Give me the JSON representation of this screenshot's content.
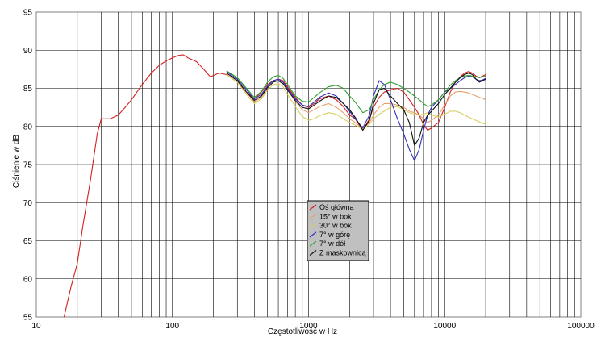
{
  "chart_data": {
    "type": "line",
    "xlabel": "Częstotliwość w Hz",
    "ylabel": "Ciśnienie w dB",
    "x_scale": "log",
    "xlim": [
      10,
      100000
    ],
    "ylim": [
      55,
      95
    ],
    "x_ticks": [
      "10",
      "100",
      "1000",
      "10000",
      "100000"
    ],
    "y_ticks": [
      "55",
      "60",
      "65",
      "70",
      "75",
      "80",
      "85",
      "90",
      "95"
    ],
    "grid": true,
    "legend_position": "center",
    "series": [
      {
        "name": "Oś główna",
        "color": "#d42020",
        "x": [
          16,
          18,
          20,
          22,
          25,
          28,
          30,
          32,
          35,
          40,
          45,
          50,
          60,
          70,
          80,
          90,
          100,
          110,
          120,
          130,
          150,
          170,
          190,
          220,
          250,
          300,
          350,
          400,
          450,
          500,
          550,
          600,
          650,
          700,
          800,
          900,
          1000,
          1100,
          1200,
          1400,
          1600,
          1800,
          2000,
          2200,
          2500,
          2800,
          3000,
          3300,
          3600,
          4000,
          4500,
          5000,
          5500,
          6000,
          6500,
          7000,
          7500,
          8000,
          9000,
          10000,
          11000,
          12000,
          13000,
          14000,
          15000,
          16000,
          17000,
          18000,
          19000,
          20000
        ],
        "y": [
          55,
          59,
          62,
          67,
          73,
          79,
          81,
          81,
          81,
          81.5,
          82.5,
          83.5,
          85.5,
          87,
          88,
          88.6,
          89,
          89.3,
          89.4,
          89,
          88.5,
          87.5,
          86.5,
          87,
          86.8,
          85.8,
          84.5,
          83.6,
          84.5,
          85.5,
          86,
          86.2,
          86,
          85.2,
          83.8,
          82.8,
          82.5,
          83,
          83.6,
          84,
          83.5,
          82.6,
          81.5,
          81,
          79.5,
          81,
          82.5,
          83.8,
          84.5,
          84.8,
          85,
          84.5,
          83.5,
          82.5,
          81.5,
          80.2,
          79.5,
          79.8,
          80.5,
          82.5,
          84.5,
          85.8,
          86.5,
          87,
          87.2,
          87,
          86.6,
          86.4,
          86.6,
          86.8
        ]
      },
      {
        "name": "15° w bok",
        "color": "#e8a070",
        "x": [
          250,
          300,
          350,
          400,
          450,
          500,
          550,
          600,
          650,
          700,
          800,
          900,
          1000,
          1100,
          1200,
          1400,
          1600,
          1800,
          2000,
          2200,
          2500,
          2800,
          3000,
          3300,
          3600,
          4000,
          4500,
          5000,
          5500,
          6000,
          6500,
          7000,
          7500,
          8000,
          9000,
          10000,
          11000,
          12000,
          13000,
          14000,
          15000,
          16000,
          17000,
          18000,
          19000,
          20000
        ],
        "y": [
          87,
          86,
          84.5,
          83.2,
          83.8,
          85,
          85.8,
          86,
          85.6,
          84.8,
          83.3,
          82.2,
          81.8,
          82.2,
          82.6,
          83,
          82.5,
          81.8,
          81,
          80.5,
          79.7,
          80.5,
          81.5,
          82.5,
          83,
          83,
          82.8,
          82.5,
          82,
          81.8,
          81.5,
          81,
          80.5,
          80.8,
          81.5,
          82.8,
          84,
          84.5,
          84.6,
          84.5,
          84.4,
          84.2,
          84,
          83.8,
          83.7,
          83.5
        ]
      },
      {
        "name": "30° w bok",
        "color": "#d8d060",
        "x": [
          250,
          300,
          350,
          400,
          450,
          500,
          550,
          600,
          650,
          700,
          800,
          900,
          1000,
          1100,
          1200,
          1400,
          1600,
          1800,
          2000,
          2200,
          2500,
          2800,
          3000,
          3300,
          3600,
          4000,
          4500,
          5000,
          5500,
          6000,
          6500,
          7000,
          7500,
          8000,
          9000,
          10000,
          11000,
          12000,
          13000,
          14000,
          15000,
          16000,
          17000,
          18000,
          19000,
          20000
        ],
        "y": [
          86.8,
          85.8,
          84.2,
          83,
          83.6,
          84.8,
          85.5,
          85.6,
          85.2,
          84.2,
          82.6,
          81.3,
          80.8,
          81,
          81.4,
          81.8,
          81.6,
          81,
          80.5,
          80.2,
          79.6,
          80.3,
          81,
          81.6,
          82,
          82.5,
          82.6,
          82.2,
          81.8,
          81.6,
          81.5,
          81.6,
          81.8,
          81.5,
          81.2,
          81.6,
          82,
          82,
          81.8,
          81.5,
          81.2,
          81,
          80.8,
          80.6,
          80.4,
          80.3
        ]
      },
      {
        "name": "7° w górę",
        "color": "#3030c0",
        "x": [
          250,
          300,
          350,
          400,
          450,
          500,
          550,
          600,
          650,
          700,
          800,
          900,
          1000,
          1100,
          1200,
          1400,
          1600,
          1800,
          2000,
          2200,
          2500,
          2800,
          3000,
          3300,
          3600,
          4000,
          4500,
          5000,
          5500,
          6000,
          6500,
          7000,
          7500,
          8000,
          9000,
          10000,
          11000,
          12000,
          13000,
          14000,
          15000,
          16000,
          17000,
          18000,
          19000,
          20000
        ],
        "y": [
          87.2,
          86.2,
          84.8,
          83.6,
          84.2,
          85.3,
          86,
          86.2,
          85.8,
          85,
          83.6,
          82.8,
          82.6,
          83.2,
          83.8,
          84.4,
          84,
          83,
          82,
          81,
          79.8,
          81.5,
          84,
          86,
          85.5,
          83.5,
          81,
          79,
          77,
          75.5,
          77,
          79.5,
          81.5,
          82.5,
          83.5,
          84.5,
          85,
          85.5,
          86,
          86.4,
          86.6,
          86.5,
          86.2,
          86,
          86.1,
          86.3
        ]
      },
      {
        "name": "7° w dół",
        "color": "#30a030",
        "x": [
          250,
          300,
          350,
          400,
          450,
          500,
          550,
          600,
          650,
          700,
          800,
          900,
          1000,
          1100,
          1200,
          1400,
          1600,
          1800,
          2000,
          2200,
          2500,
          2800,
          3000,
          3300,
          3600,
          4000,
          4500,
          5000,
          5500,
          6000,
          6500,
          7000,
          7500,
          8000,
          9000,
          10000,
          11000,
          12000,
          13000,
          14000,
          15000,
          16000,
          17000,
          18000,
          19000,
          20000
        ],
        "y": [
          87.3,
          86.4,
          85,
          83.8,
          84.6,
          85.8,
          86.5,
          86.7,
          86.3,
          85.5,
          84,
          83.3,
          83.2,
          83.8,
          84.4,
          85.2,
          85.4,
          85,
          84,
          83.2,
          81.8,
          82.2,
          83.5,
          84.8,
          85.5,
          85.8,
          85.5,
          85,
          84.5,
          84,
          83.5,
          83,
          82.6,
          82.8,
          83.5,
          84.5,
          85.4,
          86,
          86.4,
          86.6,
          86.7,
          86.6,
          86.5,
          86.4,
          86.5,
          86.6
        ]
      },
      {
        "name": "Z maskownicą",
        "color": "#101010",
        "x": [
          250,
          300,
          350,
          400,
          450,
          500,
          550,
          600,
          650,
          700,
          800,
          900,
          1000,
          1100,
          1200,
          1400,
          1600,
          1800,
          2000,
          2200,
          2500,
          2800,
          3000,
          3300,
          3600,
          4000,
          4500,
          5000,
          5500,
          6000,
          6500,
          7000,
          7500,
          8000,
          9000,
          10000,
          11000,
          12000,
          13000,
          14000,
          15000,
          16000,
          17000,
          18000,
          19000,
          20000
        ],
        "y": [
          87,
          86,
          84.5,
          83.4,
          84,
          85.1,
          85.8,
          86,
          85.6,
          84.8,
          83.4,
          82.5,
          82.3,
          82.8,
          83.3,
          84,
          83.8,
          83,
          82.2,
          81.2,
          79.5,
          80.8,
          83,
          84.8,
          85,
          84,
          83,
          82.2,
          80.5,
          77.5,
          78.5,
          80.5,
          81.5,
          82,
          83,
          84.2,
          85,
          85.8,
          86.4,
          86.8,
          87,
          86.8,
          86.2,
          85.8,
          86,
          86.2
        ]
      }
    ]
  }
}
